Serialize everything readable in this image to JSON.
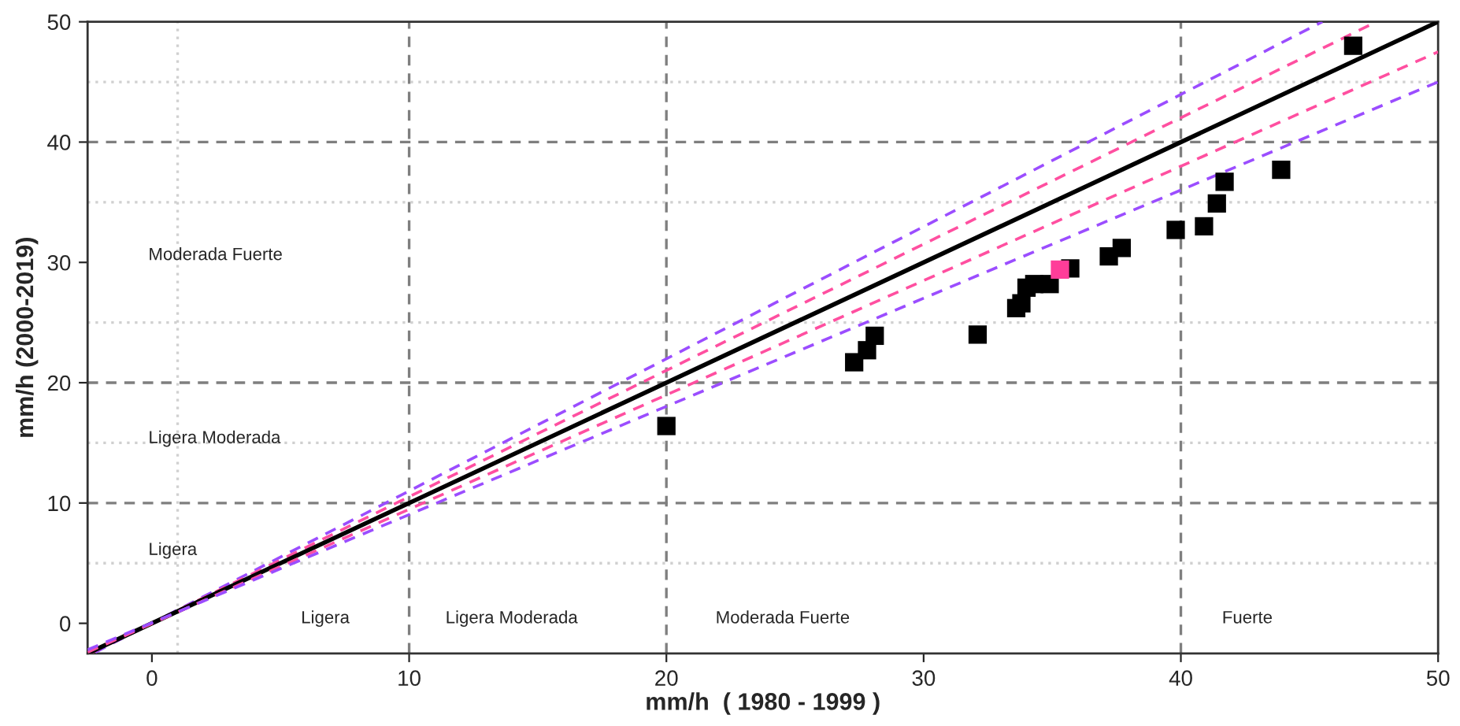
{
  "chart_data": {
    "type": "scatter",
    "xlabel": "mm/h  ( 1980 - 1999 )",
    "ylabel": "mm/h (2000-2019)",
    "xlim": [
      -2.5,
      50
    ],
    "ylim": [
      -2.5,
      50
    ],
    "xticks": [
      0,
      10,
      20,
      30,
      40,
      50
    ],
    "yticks": [
      0,
      10,
      20,
      30,
      40,
      50
    ],
    "grid": false,
    "series": [
      {
        "type": "line",
        "color": "#9b4dff",
        "line_style": "dashed",
        "x": [
          -2.2,
          45.5
        ],
        "values": [
          -2.4,
          50
        ]
      },
      {
        "type": "line",
        "color": "#ff4fa0",
        "line_style": "dashed",
        "x": [
          -2.4,
          47.6
        ],
        "values": [
          -2.5,
          50
        ]
      },
      {
        "type": "line",
        "color": "#000000",
        "line_style": "solid",
        "x": [
          -2.5,
          50
        ],
        "values": [
          -2.5,
          50
        ]
      },
      {
        "type": "line",
        "color": "#ff4fa0",
        "line_style": "dashed",
        "x": [
          -2.5,
          50
        ],
        "values": [
          -2.4,
          47.5
        ]
      },
      {
        "type": "line",
        "color": "#9b4dff",
        "line_style": "dashed",
        "x": [
          -2.5,
          50
        ],
        "values": [
          -2.2,
          45
        ]
      },
      {
        "color": "#000000",
        "marker": "square",
        "x": [
          20.0,
          27.3,
          27.8,
          28.1,
          32.1,
          33.6,
          33.8,
          34.0,
          34.3,
          34.9,
          35.7,
          37.2,
          37.7,
          39.8,
          40.9,
          41.4,
          41.7,
          43.9,
          46.7
        ],
        "values": [
          16.4,
          21.7,
          22.7,
          23.9,
          24.0,
          26.2,
          26.6,
          27.9,
          28.2,
          28.2,
          29.5,
          30.5,
          31.2,
          32.7,
          33.0,
          34.9,
          36.7,
          37.7,
          48.0
        ]
      },
      {
        "color": "#ff3d99",
        "marker": "square",
        "x": [
          35.3
        ],
        "values": [
          29.4
        ]
      }
    ],
    "ref_lines": [
      {
        "axis": "x",
        "value": 10,
        "color": "#7f7f7f",
        "line_style": "dashed"
      },
      {
        "axis": "x",
        "value": 20,
        "color": "#7f7f7f",
        "line_style": "dashed"
      },
      {
        "axis": "x",
        "value": 40,
        "color": "#7f7f7f",
        "line_style": "dashed"
      },
      {
        "axis": "y",
        "value": 10,
        "color": "#7f7f7f",
        "line_style": "dashed"
      },
      {
        "axis": "y",
        "value": 20,
        "color": "#7f7f7f",
        "line_style": "dashed"
      },
      {
        "axis": "y",
        "value": 40,
        "color": "#7f7f7f",
        "line_style": "dashed"
      },
      {
        "axis": "x",
        "value": 1,
        "color": "#d0d0d0",
        "line_style": "dotted"
      },
      {
        "axis": "y",
        "value": 5,
        "color": "#d0d0d0",
        "line_style": "dotted"
      },
      {
        "axis": "y",
        "value": 15,
        "color": "#d0d0d0",
        "line_style": "dotted"
      },
      {
        "axis": "y",
        "value": 25,
        "color": "#d0d0d0",
        "line_style": "dotted"
      },
      {
        "axis": "y",
        "value": 35,
        "color": "#d0d0d0",
        "line_style": "dotted"
      },
      {
        "axis": "y",
        "value": 45,
        "color": "#d0d0d0",
        "line_style": "dotted"
      }
    ],
    "annotations": [
      "Moderada Fuerte",
      "Ligera Moderada",
      "Ligera",
      "Ligera",
      "Ligera Moderada",
      "Moderada Fuerte",
      "Fuerte"
    ]
  }
}
